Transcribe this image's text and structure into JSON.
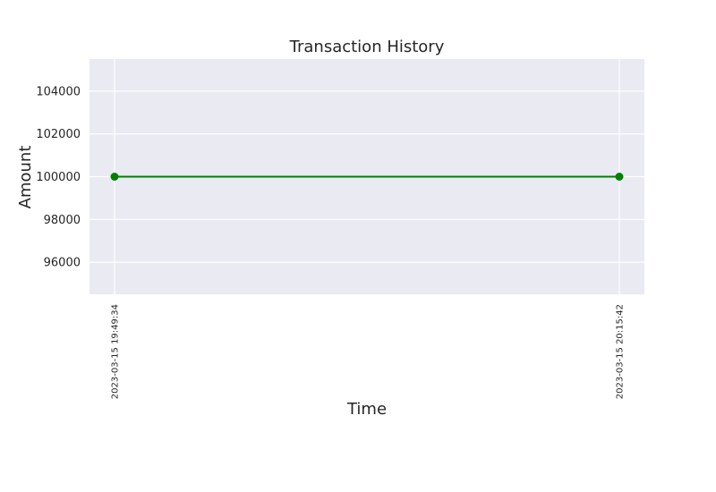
{
  "chart_data": {
    "type": "line",
    "title": "Transaction History",
    "xlabel": "Time",
    "ylabel": "Amount",
    "x": [
      "2023-03-15 19:49:34",
      "2023-03-15 20:15:42"
    ],
    "series": [
      {
        "values": [
          100000,
          100000
        ],
        "color": "#008000"
      }
    ],
    "ylim": [
      94500,
      105500
    ],
    "yticks": [
      "96000",
      "98000",
      "100000",
      "102000",
      "104000"
    ],
    "grid": true,
    "background_color": "#eaeaf2"
  }
}
